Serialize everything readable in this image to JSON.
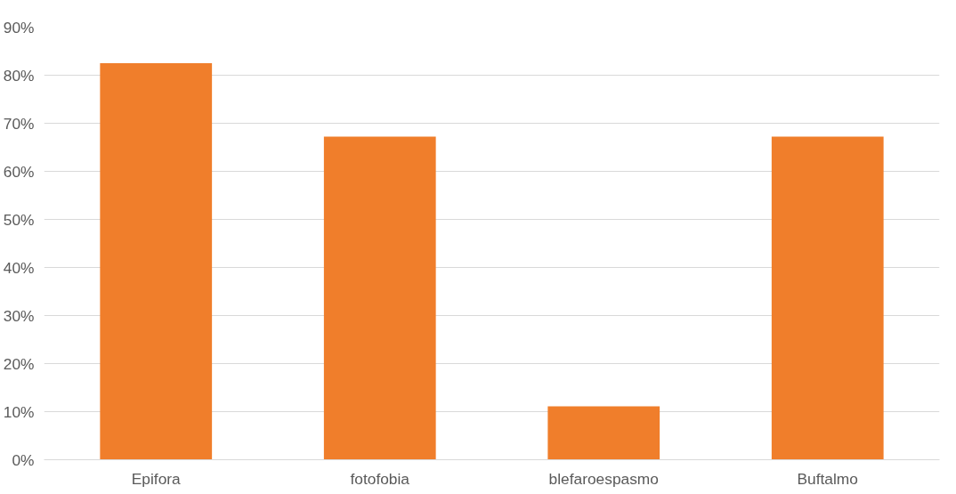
{
  "chart_data": {
    "type": "bar",
    "categories": [
      "Epifora",
      "fotofobia",
      "blefaroespasmo",
      "Buftalmo"
    ],
    "values": [
      82.5,
      67.2,
      11.1,
      67.2
    ],
    "color": "#f07e2b",
    "ylim": [
      0,
      90
    ],
    "yticks": [
      {
        "value": 0,
        "label": "0%"
      },
      {
        "value": 10,
        "label": "10%"
      },
      {
        "value": 20,
        "label": "20%"
      },
      {
        "value": 30,
        "label": "30%"
      },
      {
        "value": 40,
        "label": "40%"
      },
      {
        "value": 50,
        "label": "50%"
      },
      {
        "value": 60,
        "label": "60%"
      },
      {
        "value": 70,
        "label": "70%"
      },
      {
        "value": 80,
        "label": "80%"
      },
      {
        "value": 90,
        "label": "90%"
      }
    ],
    "grid": "y"
  }
}
